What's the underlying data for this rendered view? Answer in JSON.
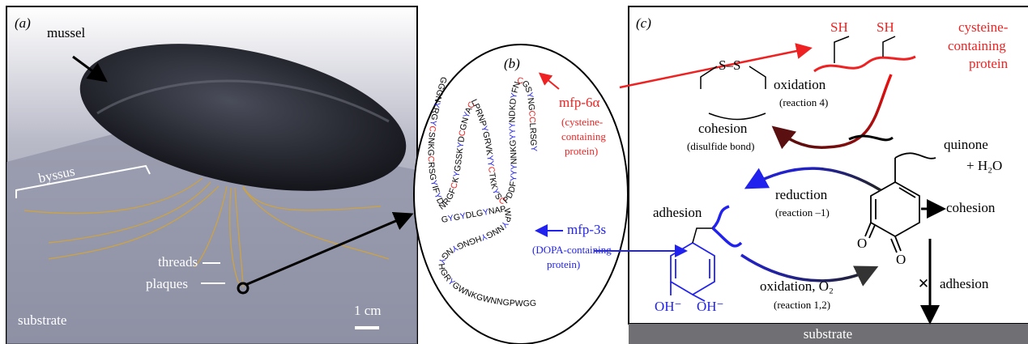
{
  "panel_a": {
    "label": "(a)",
    "mussel": "mussel",
    "byssus": "byssus",
    "threads": "threads",
    "plaques": "plaques",
    "substrate": "substrate",
    "scale": "1 cm"
  },
  "panel_b": {
    "label": "(b)",
    "mfp6": {
      "name": "mfp-6α",
      "desc": [
        "(cysteine-",
        "containing",
        "protein)"
      ],
      "sequence": "GGGNYRGYCSNKGCRSGYIFYDNRGFCKYGSSKYDCGNYACLPRNPYGRVKYYCTKKYSCPDDFYYYNNKGYYYNDKDYFNCGSYNGCCLRSGY"
    },
    "mfp3": {
      "name": "mfp-3s",
      "desc": [
        "(DOPA-containing",
        "protein)"
      ],
      "sequence": "GYGYDLGYNAPWPYNNGYHGNGYNGYHGRYGWNKGWNNGPWGG"
    }
  },
  "panel_c": {
    "label": "(c)",
    "sh": [
      "SH",
      "SH"
    ],
    "cys_protein": [
      "cysteine-",
      "containing",
      "protein"
    ],
    "oxidation": "oxidation",
    "reaction4": "(reaction 4)",
    "ss": "S–S",
    "cohesion": "cohesion",
    "disulfide": "(disulfide bond)",
    "quinone": "quinone",
    "water": "+ H₂O",
    "reduction": "reduction",
    "reaction_minus1": "(reaction –1)",
    "cohesion2": "cohesion",
    "adhesion": "adhesion",
    "o": [
      "O",
      "O"
    ],
    "oxidation_o2": "oxidation, O₂",
    "reaction12": "(reaction 1,2)",
    "adhesion_blocked": "adhesion",
    "oh": [
      "OH⁻",
      "OH⁻"
    ],
    "substrate": "substrate"
  }
}
